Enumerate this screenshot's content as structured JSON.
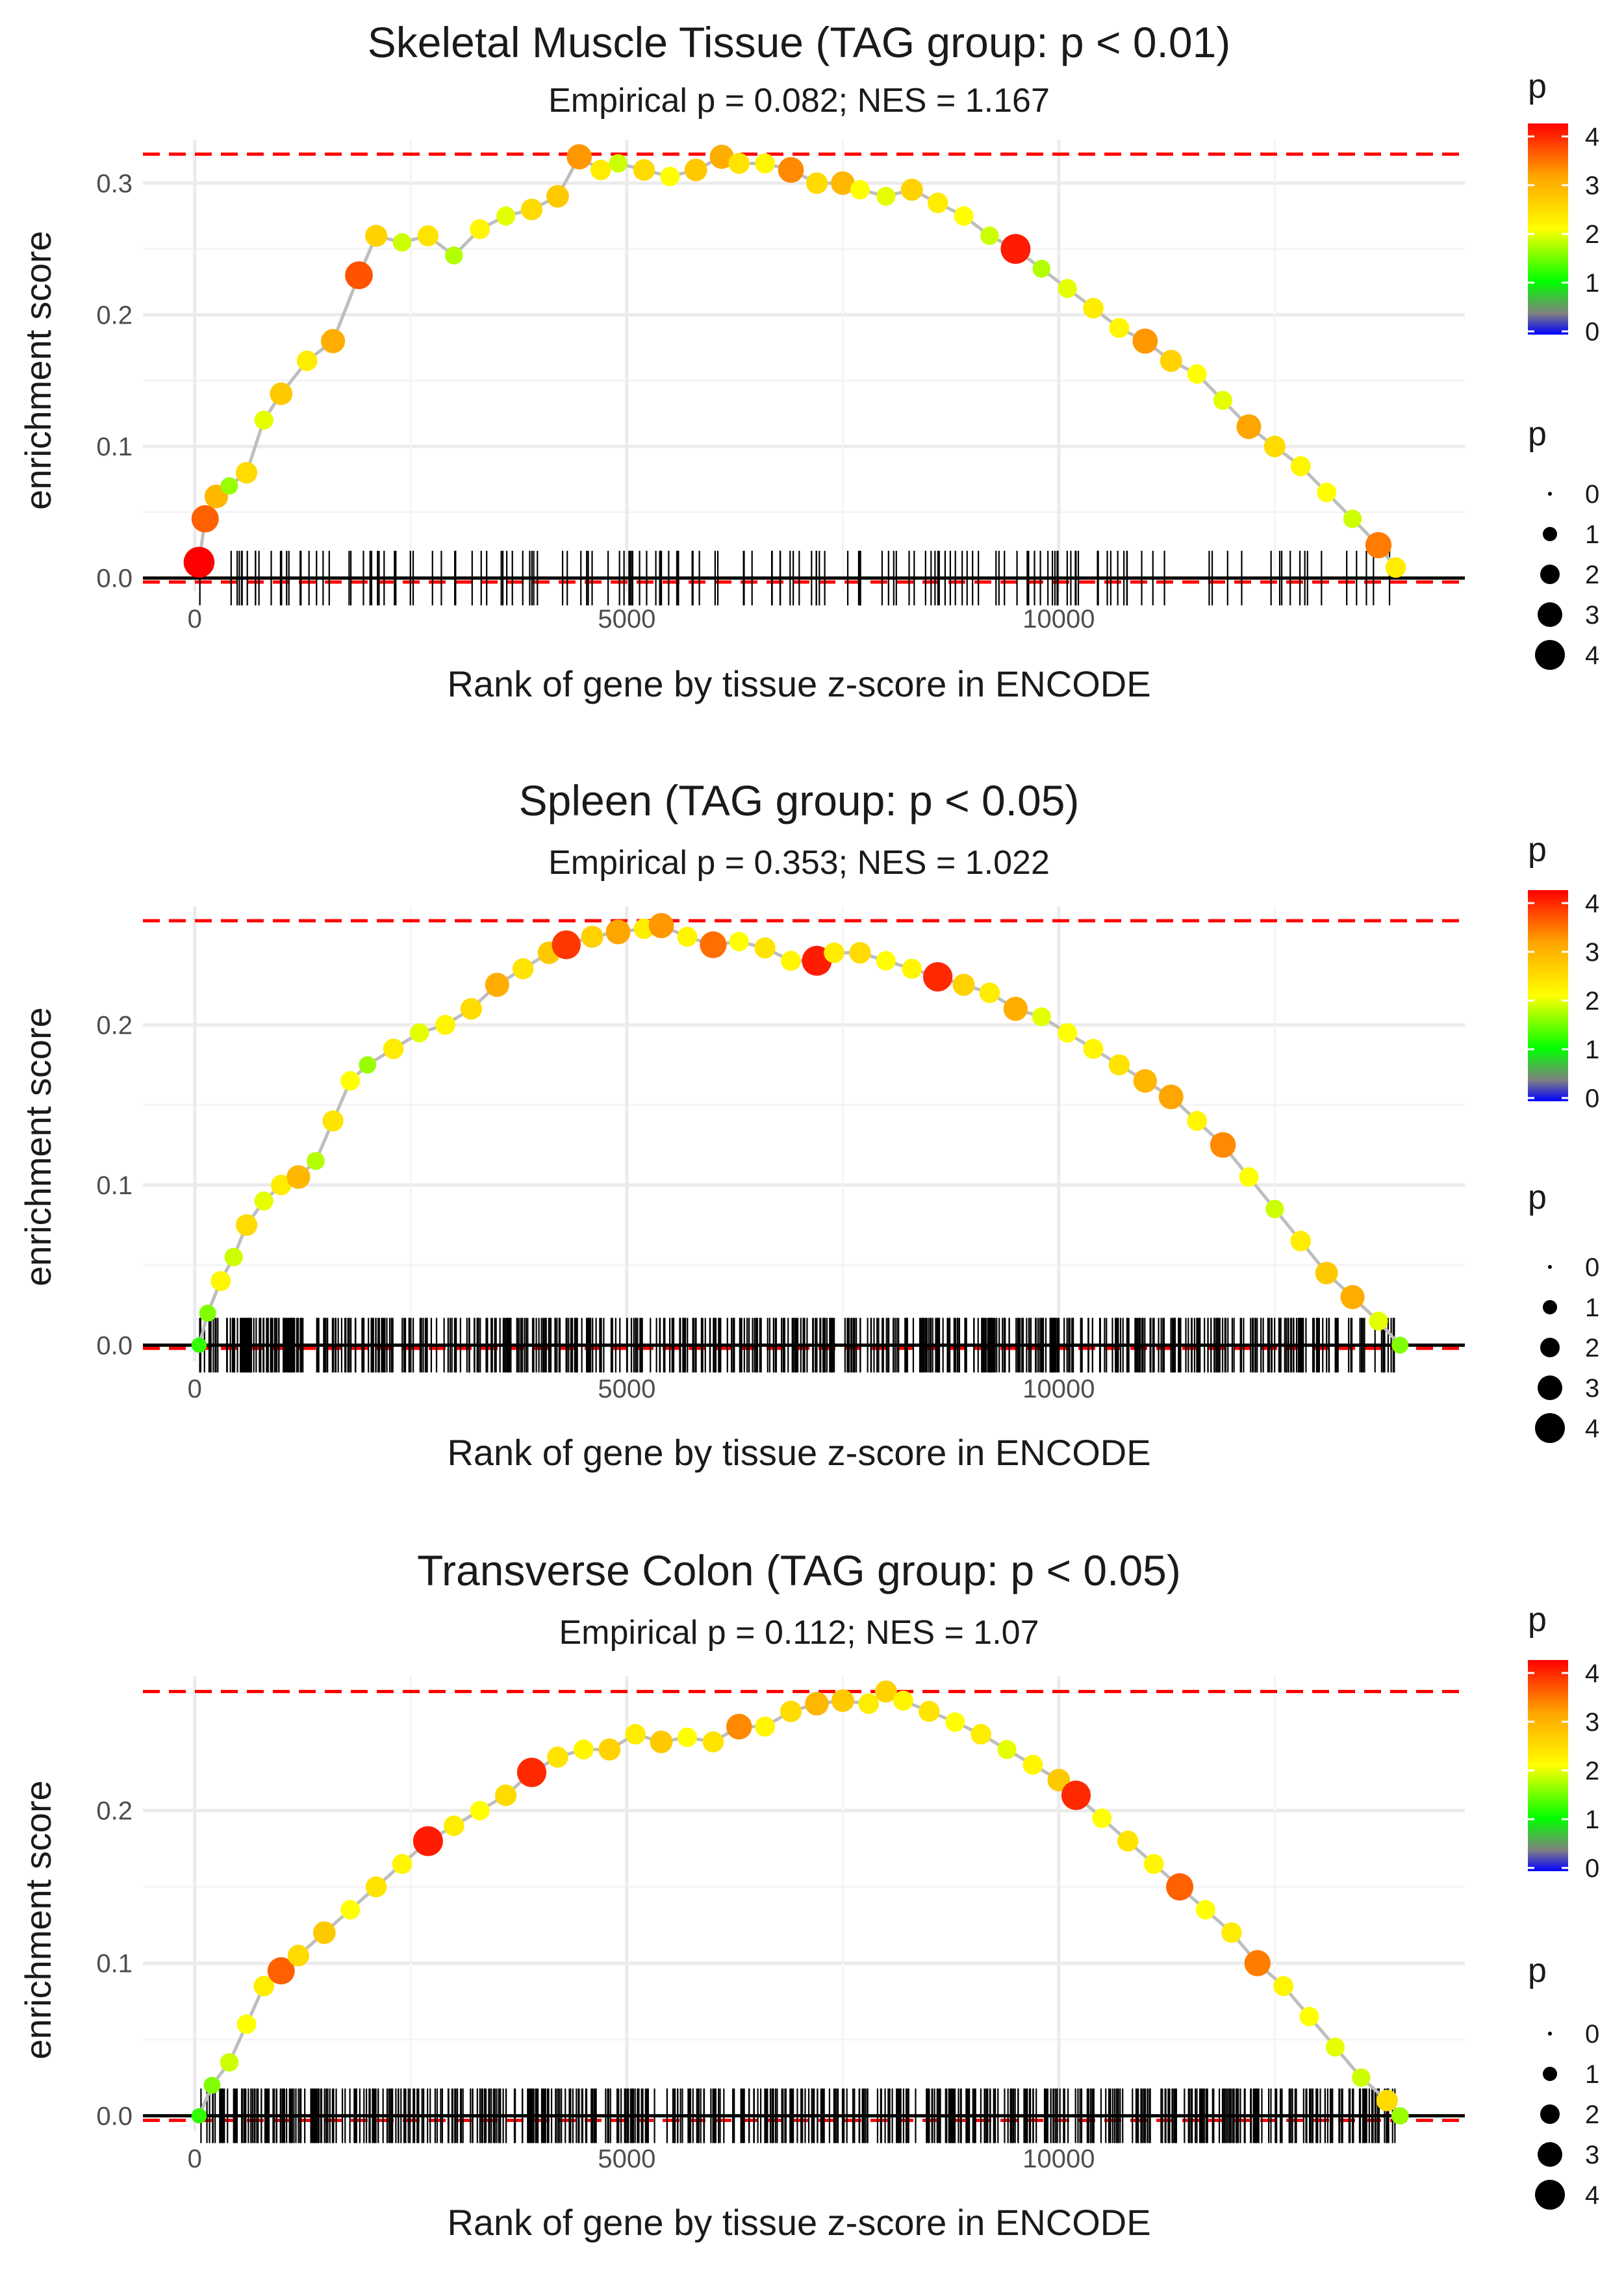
{
  "chart_data": [
    {
      "type": "line",
      "title": "Skeletal Muscle Tissue (TAG group: p < 0.01)",
      "subtitle": "Empirical p = 0.082; NES = 1.167",
      "xlabel": "Rank of gene by tissue z-score in ENCODE",
      "ylabel": "enrichment score",
      "xlim": [
        -600,
        14700
      ],
      "ylim": [
        -0.01,
        0.333
      ],
      "xticks": [
        0,
        5000,
        10000
      ],
      "xtick_labels": [
        "0",
        "5000",
        "10000"
      ],
      "yticks": [
        0.0,
        0.1,
        0.2,
        0.3
      ],
      "ytick_labels": [
        "0.0",
        "0.1",
        "0.2",
        "0.3"
      ],
      "max_es": 0.322,
      "min_es": -0.003,
      "rug_ticks": 160,
      "rug_seed": 11,
      "series": [
        {
          "name": "running enrichment score",
          "x": [
            50,
            120,
            250,
            400,
            600,
            800,
            1000,
            1300,
            1600,
            1900,
            2100,
            2400,
            2700,
            3000,
            3300,
            3600,
            3900,
            4200,
            4450,
            4700,
            4900,
            5200,
            5500,
            5800,
            6100,
            6300,
            6600,
            6900,
            7200,
            7500,
            7700,
            8000,
            8300,
            8600,
            8900,
            9200,
            9500,
            9800,
            10100,
            10400,
            10700,
            11000,
            11300,
            11600,
            11900,
            12200,
            12500,
            12800,
            13100,
            13400,
            13700,
            13900
          ],
          "y": [
            0.012,
            0.045,
            0.062,
            0.07,
            0.08,
            0.12,
            0.14,
            0.165,
            0.18,
            0.23,
            0.26,
            0.255,
            0.26,
            0.245,
            0.265,
            0.275,
            0.28,
            0.29,
            0.32,
            0.31,
            0.315,
            0.31,
            0.305,
            0.31,
            0.32,
            0.315,
            0.315,
            0.31,
            0.3,
            0.3,
            0.295,
            0.29,
            0.295,
            0.285,
            0.275,
            0.26,
            0.25,
            0.235,
            0.22,
            0.205,
            0.19,
            0.18,
            0.165,
            0.155,
            0.135,
            0.115,
            0.1,
            0.085,
            0.065,
            0.045,
            0.025,
            0.008
          ],
          "p": [
            4.2,
            3.5,
            2.8,
            1.6,
            2.4,
            1.9,
            2.6,
            2.2,
            2.9,
            3.6,
            2.5,
            1.8,
            2.3,
            1.7,
            2.1,
            1.9,
            2.4,
            2.6,
            3.1,
            2.2,
            1.8,
            2.4,
            2.0,
            2.6,
            2.9,
            2.3,
            2.1,
            3.2,
            2.4,
            2.8,
            2.0,
            1.9,
            2.5,
            2.2,
            2.0,
            1.8,
            4.0,
            1.7,
            1.9,
            2.2,
            2.1,
            3.1,
            2.5,
            2.0,
            1.9,
            3.0,
            2.4,
            2.1,
            2.0,
            1.8,
            3.3,
            2.2
          ]
        }
      ]
    },
    {
      "type": "line",
      "title": "Spleen (TAG group: p < 0.05)",
      "subtitle": "Empirical p = 0.353; NES = 1.022",
      "xlabel": "Rank of gene by tissue z-score in ENCODE",
      "ylabel": "enrichment score",
      "xlim": [
        -600,
        14700
      ],
      "ylim": [
        -0.01,
        0.274
      ],
      "xticks": [
        0,
        5000,
        10000
      ],
      "xtick_labels": [
        "0",
        "5000",
        "10000"
      ],
      "yticks": [
        0.0,
        0.1,
        0.2
      ],
      "ytick_labels": [
        "0.0",
        "0.1",
        "0.2"
      ],
      "max_es": 0.265,
      "min_es": -0.002,
      "rug_ticks": 640,
      "rug_seed": 23,
      "series": [
        {
          "name": "running enrichment score",
          "x": [
            50,
            150,
            300,
            450,
            600,
            800,
            1000,
            1200,
            1400,
            1600,
            1800,
            2000,
            2300,
            2600,
            2900,
            3200,
            3500,
            3800,
            4100,
            4300,
            4600,
            4900,
            5200,
            5400,
            5700,
            6000,
            6300,
            6600,
            6900,
            7200,
            7400,
            7700,
            8000,
            8300,
            8600,
            8900,
            9200,
            9500,
            9800,
            10100,
            10400,
            10700,
            11000,
            11300,
            11600,
            11900,
            12200,
            12500,
            12800,
            13100,
            13400,
            13700,
            13950
          ],
          "y": [
            0.0,
            0.02,
            0.04,
            0.055,
            0.075,
            0.09,
            0.1,
            0.105,
            0.115,
            0.14,
            0.165,
            0.175,
            0.185,
            0.195,
            0.2,
            0.21,
            0.225,
            0.235,
            0.245,
            0.25,
            0.255,
            0.258,
            0.26,
            0.262,
            0.255,
            0.25,
            0.252,
            0.248,
            0.24,
            0.24,
            0.245,
            0.245,
            0.24,
            0.235,
            0.23,
            0.225,
            0.22,
            0.21,
            0.205,
            0.195,
            0.185,
            0.175,
            0.165,
            0.155,
            0.14,
            0.125,
            0.105,
            0.085,
            0.065,
            0.045,
            0.03,
            0.015,
            0.0
          ],
          "p": [
            1.2,
            1.5,
            2.1,
            1.8,
            2.4,
            1.9,
            2.2,
            2.8,
            1.7,
            2.3,
            2.0,
            1.6,
            2.2,
            1.9,
            2.1,
            2.4,
            2.9,
            2.3,
            2.6,
            3.8,
            2.5,
            3.0,
            2.2,
            3.1,
            2.1,
            3.4,
            2.0,
            2.3,
            2.1,
            4.0,
            2.2,
            2.4,
            2.0,
            2.1,
            3.9,
            2.5,
            2.2,
            2.9,
            1.9,
            2.0,
            2.1,
            2.3,
            2.8,
            3.0,
            2.1,
            3.2,
            2.0,
            1.8,
            2.2,
            2.6,
            2.9,
            1.9,
            1.5
          ]
        }
      ]
    },
    {
      "type": "line",
      "title": "Transverse Colon (TAG group: p < 0.05)",
      "subtitle": "Empirical p = 0.112; NES = 1.07",
      "xlabel": "Rank of gene by tissue z-score in ENCODE",
      "ylabel": "enrichment score",
      "xlim": [
        -600,
        14700
      ],
      "ylim": [
        -0.01,
        0.288
      ],
      "xticks": [
        0,
        5000,
        10000
      ],
      "xtick_labels": [
        "0",
        "5000",
        "10000"
      ],
      "yticks": [
        0.0,
        0.1,
        0.2
      ],
      "ytick_labels": [
        "0.0",
        "0.1",
        "0.2"
      ],
      "max_es": 0.278,
      "min_es": -0.003,
      "rug_ticks": 640,
      "rug_seed": 37,
      "series": [
        {
          "name": "running enrichment score",
          "x": [
            50,
            200,
            400,
            600,
            800,
            1000,
            1200,
            1500,
            1800,
            2100,
            2400,
            2700,
            3000,
            3300,
            3600,
            3900,
            4200,
            4500,
            4800,
            5100,
            5400,
            5700,
            6000,
            6300,
            6600,
            6900,
            7200,
            7500,
            7800,
            8000,
            8200,
            8500,
            8800,
            9100,
            9400,
            9700,
            10000,
            10200,
            10500,
            10800,
            11100,
            11400,
            11700,
            12000,
            12300,
            12600,
            12900,
            13200,
            13500,
            13800,
            13950
          ],
          "y": [
            0.0,
            0.02,
            0.035,
            0.06,
            0.085,
            0.095,
            0.105,
            0.12,
            0.135,
            0.15,
            0.165,
            0.18,
            0.19,
            0.2,
            0.21,
            0.225,
            0.235,
            0.24,
            0.24,
            0.25,
            0.245,
            0.248,
            0.245,
            0.255,
            0.255,
            0.265,
            0.27,
            0.272,
            0.27,
            0.278,
            0.272,
            0.265,
            0.258,
            0.25,
            0.24,
            0.23,
            0.22,
            0.21,
            0.195,
            0.18,
            0.165,
            0.15,
            0.135,
            0.12,
            0.1,
            0.085,
            0.065,
            0.045,
            0.025,
            0.01,
            0.0
          ],
          "p": [
            1.2,
            1.5,
            1.8,
            2.0,
            2.2,
            3.5,
            2.4,
            2.6,
            2.0,
            2.3,
            2.1,
            4.0,
            2.2,
            2.0,
            2.4,
            3.9,
            2.3,
            2.1,
            2.5,
            2.2,
            2.6,
            2.0,
            2.3,
            3.2,
            2.1,
            2.4,
            2.8,
            2.6,
            2.2,
            2.5,
            2.1,
            2.3,
            2.0,
            2.2,
            1.9,
            2.1,
            2.6,
            3.9,
            2.0,
            2.3,
            2.1,
            3.5,
            2.0,
            2.2,
            3.3,
            2.1,
            2.0,
            1.9,
            1.8,
            2.4,
            1.6
          ]
        }
      ]
    }
  ],
  "legend": {
    "color_title": "p",
    "size_title": "p",
    "color_ticks": [
      "4",
      "3",
      "2",
      "1",
      "0"
    ],
    "size_items": [
      {
        "label": "0",
        "value": 0
      },
      {
        "label": "1",
        "value": 1
      },
      {
        "label": "2",
        "value": 2
      },
      {
        "label": "3",
        "value": 3
      },
      {
        "label": "4",
        "value": 4
      }
    ],
    "gradient": [
      "#ff0000",
      "#ffa500",
      "#ffff00",
      "#00ff00",
      "#808080",
      "#0000ff"
    ]
  },
  "colors": {
    "line": "#bebebe",
    "reference_dashed": "#ff0000",
    "zero_line": "#000000",
    "rug": "#000000",
    "grid": "#ebebeb"
  }
}
